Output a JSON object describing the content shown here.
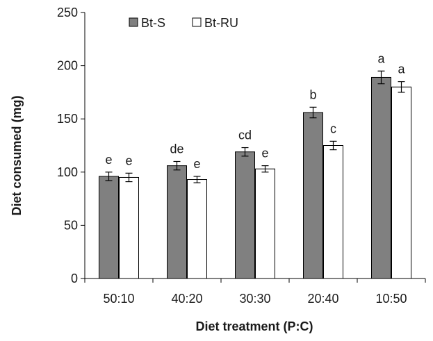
{
  "chart_data": {
    "type": "bar",
    "xlabel": "Diet treatment (P:C)",
    "ylabel": "Diet consumed (mg)",
    "ylim": [
      0,
      250
    ],
    "yticks": [
      0,
      50,
      100,
      150,
      200,
      250
    ],
    "categories": [
      "50:10",
      "40:20",
      "30:30",
      "20:40",
      "10:50"
    ],
    "legend_position": "top-left",
    "series": [
      {
        "name": "Bt-S",
        "color": "#808080",
        "values": [
          96,
          106,
          119,
          156,
          189
        ],
        "errors": [
          4,
          4,
          4,
          5,
          6
        ],
        "letters": [
          "e",
          "de",
          "cd",
          "b",
          "a"
        ]
      },
      {
        "name": "Bt-RU",
        "color": "#ffffff",
        "values": [
          95,
          93,
          103,
          125,
          180
        ],
        "errors": [
          4,
          3,
          3,
          4,
          5
        ],
        "letters": [
          "e",
          "e",
          "e",
          "c",
          "a"
        ]
      }
    ]
  }
}
